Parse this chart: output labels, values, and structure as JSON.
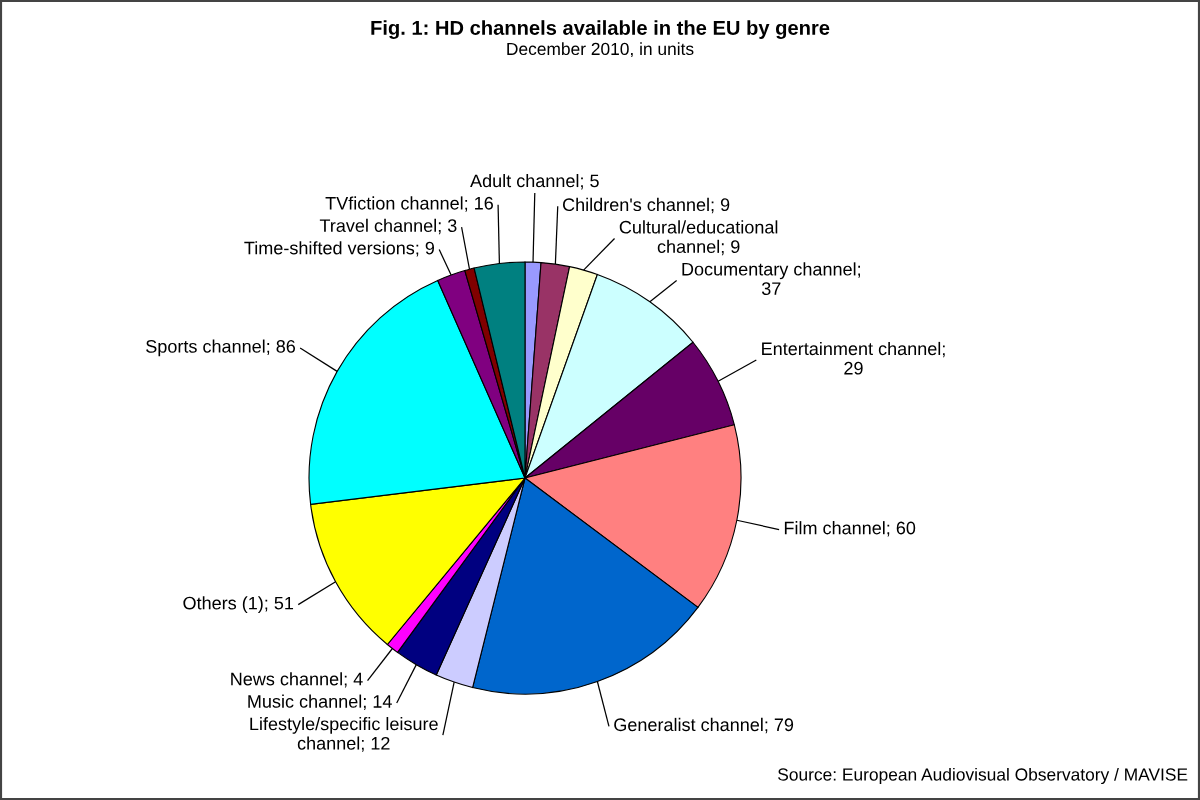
{
  "chart_data": {
    "type": "pie",
    "title": "Fig. 1: HD channels available in the EU by genre",
    "subtitle": "December 2010, in units",
    "categories": [
      "Adult channel; 5",
      "Children's channel; 9",
      "Cultural/educational channel; 9",
      "Documentary channel; 37",
      "Entertainment channel; 29",
      "Film channel; 60",
      "Generalist channel; 79",
      "Lifestyle/specific leisure channel; 12",
      "Music channel; 14",
      "News channel; 4",
      "Others (1); 51",
      "Sports channel; 86",
      "Time-shifted versions; 9",
      "Travel channel; 3",
      "TVfiction channel; 16"
    ],
    "values": [
      5,
      9,
      9,
      37,
      29,
      60,
      79,
      12,
      14,
      4,
      51,
      86,
      9,
      3,
      16
    ],
    "colors": [
      "#9999ff",
      "#993366",
      "#ffffcc",
      "#ccffff",
      "#660066",
      "#ff8080",
      "#0066cc",
      "#ccccff",
      "#000080",
      "#ff00ff",
      "#ffff00",
      "#00ffff",
      "#800080",
      "#800000",
      "#008080"
    ],
    "annotations": [
      "Source: European Audiovisual Observatory / MAVISE"
    ]
  }
}
